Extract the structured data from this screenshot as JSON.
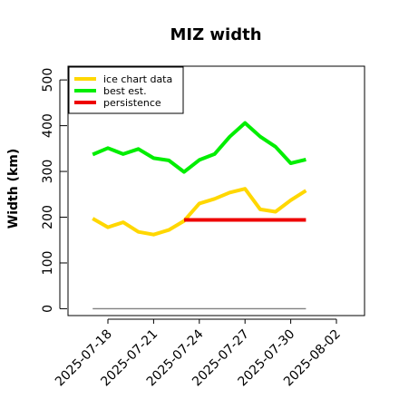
{
  "chart_data": {
    "type": "line",
    "title": "MIZ width",
    "xlabel": "",
    "ylabel": "Width (km)",
    "x_tick_labels": [
      "2025-07-18",
      "2025-07-21",
      "2025-07-24",
      "2025-07-27",
      "2025-07-30",
      "2025-08-02"
    ],
    "ylim": [
      -15,
      530
    ],
    "y_ticks": [
      0,
      100,
      200,
      300,
      400,
      500
    ],
    "grid": false,
    "legend_position": "top-left",
    "reference_line": {
      "y": 0,
      "from": "2025-07-17",
      "to": "2025-07-31",
      "color": "#808080"
    },
    "series": [
      {
        "name": "ice chart data",
        "color": "#ffd700",
        "x": [
          "2025-07-17",
          "2025-07-18",
          "2025-07-19",
          "2025-07-20",
          "2025-07-21",
          "2025-07-22",
          "2025-07-23",
          "2025-07-24",
          "2025-07-25",
          "2025-07-26",
          "2025-07-27",
          "2025-07-28",
          "2025-07-29",
          "2025-07-30",
          "2025-07-31"
        ],
        "values": [
          197,
          178,
          189,
          168,
          162,
          172,
          192,
          230,
          240,
          254,
          262,
          217,
          212,
          237,
          258
        ]
      },
      {
        "name": "best est.",
        "color": "#00ee00",
        "x": [
          "2025-07-17",
          "2025-07-18",
          "2025-07-19",
          "2025-07-20",
          "2025-07-21",
          "2025-07-22",
          "2025-07-23",
          "2025-07-24",
          "2025-07-25",
          "2025-07-26",
          "2025-07-27",
          "2025-07-28",
          "2025-07-29",
          "2025-07-30",
          "2025-07-31"
        ],
        "values": [
          337,
          351,
          338,
          349,
          329,
          324,
          299,
          325,
          338,
          376,
          406,
          376,
          354,
          318,
          326
        ]
      },
      {
        "name": "persistence",
        "color": "#ee0000",
        "x": [
          "2025-07-23",
          "2025-07-24",
          "2025-07-25",
          "2025-07-26",
          "2025-07-27",
          "2025-07-28",
          "2025-07-29",
          "2025-07-30",
          "2025-07-31"
        ],
        "values": [
          194,
          194,
          194,
          194,
          194,
          194,
          194,
          194,
          194
        ]
      }
    ]
  }
}
